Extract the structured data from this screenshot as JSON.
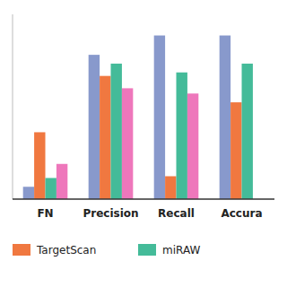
{
  "chart_data": {
    "type": "bar",
    "categories": [
      "FN",
      "Precision",
      "Recall",
      "Accura"
    ],
    "series": [
      {
        "color": "#8899cc",
        "values": [
          0.07,
          0.82,
          0.93,
          0.93
        ]
      },
      {
        "name": "TargetScan",
        "color": "#f07840",
        "values": [
          0.38,
          0.7,
          0.13,
          0.55
        ]
      },
      {
        "name": "miRAW",
        "color": "#44bb99",
        "values": [
          0.12,
          0.77,
          0.72,
          0.77
        ]
      },
      {
        "color": "#ee77bb",
        "values": [
          0.2,
          0.63,
          0.6,
          0.0
        ]
      }
    ],
    "ylim": [
      0,
      1.05
    ],
    "tick_labels": "x",
    "legend": "bottom"
  }
}
